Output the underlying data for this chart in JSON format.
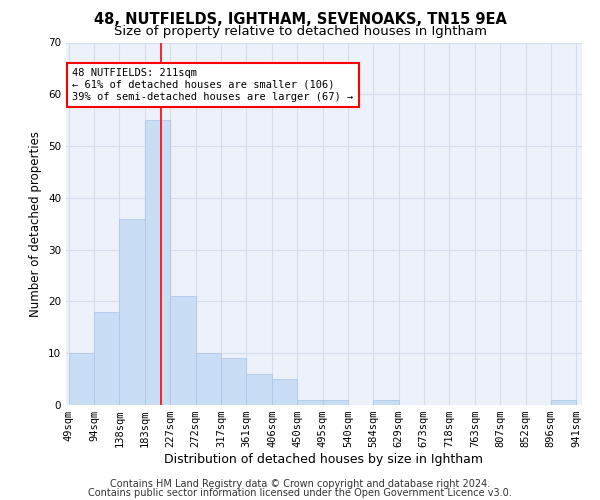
{
  "title": "48, NUTFIELDS, IGHTHAM, SEVENOAKS, TN15 9EA",
  "subtitle": "Size of property relative to detached houses in Ightham",
  "xlabel": "Distribution of detached houses by size in Ightham",
  "ylabel": "Number of detached properties",
  "bar_edges": [
    49,
    94,
    138,
    183,
    227,
    272,
    317,
    361,
    406,
    450,
    495,
    540,
    584,
    629,
    673,
    718,
    763,
    807,
    852,
    896,
    941
  ],
  "bar_heights": [
    10,
    18,
    36,
    55,
    21,
    10,
    9,
    6,
    5,
    1,
    1,
    0,
    1,
    0,
    0,
    0,
    0,
    0,
    0,
    1
  ],
  "bar_color": "#c9ddf5",
  "bar_edgecolor": "#aec8e8",
  "grid_color": "#d4ddf0",
  "background_color": "#edf1f9",
  "ref_line_x": 211,
  "ref_line_color": "red",
  "annotation_text": "48 NUTFIELDS: 211sqm\n← 61% of detached houses are smaller (106)\n39% of semi-detached houses are larger (67) →",
  "annotation_box_color": "red",
  "ylim": [
    0,
    70
  ],
  "yticks": [
    0,
    10,
    20,
    30,
    40,
    50,
    60,
    70
  ],
  "tick_labels": [
    "49sqm",
    "94sqm",
    "138sqm",
    "183sqm",
    "227sqm",
    "272sqm",
    "317sqm",
    "361sqm",
    "406sqm",
    "450sqm",
    "495sqm",
    "540sqm",
    "584sqm",
    "629sqm",
    "673sqm",
    "718sqm",
    "763sqm",
    "807sqm",
    "852sqm",
    "896sqm",
    "941sqm"
  ],
  "footer_line1": "Contains HM Land Registry data © Crown copyright and database right 2024.",
  "footer_line2": "Contains public sector information licensed under the Open Government Licence v3.0.",
  "title_fontsize": 10.5,
  "subtitle_fontsize": 9.5,
  "xlabel_fontsize": 9,
  "ylabel_fontsize": 8.5,
  "tick_fontsize": 7.5,
  "footer_fontsize": 7
}
